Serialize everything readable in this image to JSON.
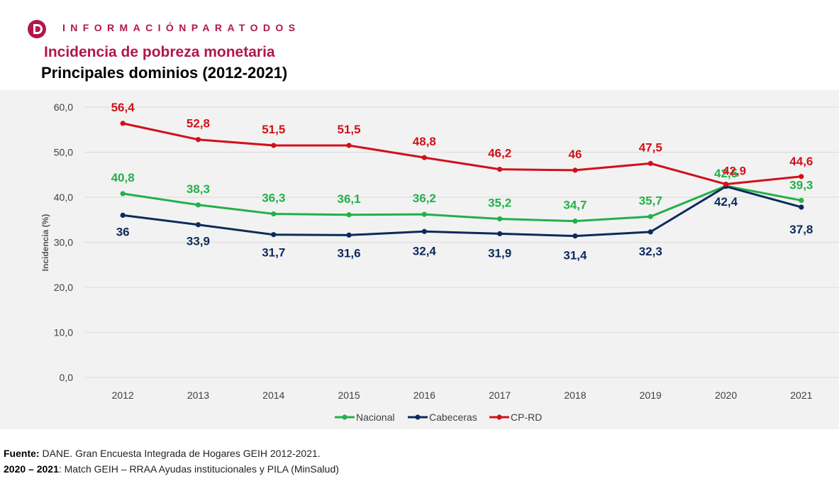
{
  "header": {
    "brand": "INFORMACIÓNPARATODOS",
    "title": "Incidencia de pobreza monetaria",
    "subtitle": "Principales dominios (2012-2021)"
  },
  "footer": {
    "source_label": "Fuente:",
    "source_text": " DANE. Gran Encuesta Integrada de Hogares GEIH 2012-2021.",
    "note_label": "2020 – 2021",
    "note_text": ": Match GEIH – RRAA Ayudas institucionales y PILA (MinSalud)"
  },
  "colors": {
    "brand": "#b0174a",
    "nacional": "#22b04b",
    "cabeceras": "#0d2a5c",
    "cprd": "#d0111b",
    "grid": "#d9d9d9",
    "background": "#f2f2f2"
  },
  "chart_data": {
    "type": "line",
    "ylabel": "Incidencia (%)",
    "xlabel": "",
    "ylim": [
      0,
      60
    ],
    "yticks": [
      "0,0",
      "10,0",
      "20,0",
      "30,0",
      "40,0",
      "50,0",
      "60,0"
    ],
    "grid": true,
    "legend_position": "bottom",
    "categories": [
      "2012",
      "2013",
      "2014",
      "2015",
      "2016",
      "2017",
      "2018",
      "2019",
      "2020",
      "2021"
    ],
    "series": [
      {
        "name": "Nacional",
        "values": [
          40.8,
          38.3,
          36.3,
          36.1,
          36.2,
          35.2,
          34.7,
          35.7,
          42.5,
          39.3
        ],
        "labels": [
          "40,8",
          "38,3",
          "36,3",
          "36,1",
          "36,2",
          "35,2",
          "34,7",
          "35,7",
          "42,5",
          "39,3"
        ]
      },
      {
        "name": "Cabeceras",
        "values": [
          36,
          33.9,
          31.7,
          31.6,
          32.4,
          31.9,
          31.4,
          32.3,
          42.4,
          37.8
        ],
        "labels": [
          "36",
          "33,9",
          "31,7",
          "31,6",
          "32,4",
          "31,9",
          "31,4",
          "32,3",
          "42,4",
          "37,8"
        ]
      },
      {
        "name": "CP-RD",
        "values": [
          56.4,
          52.8,
          51.5,
          51.5,
          48.8,
          46.2,
          46,
          47.5,
          42.9,
          44.6
        ],
        "labels": [
          "56,4",
          "52,8",
          "51,5",
          "51,5",
          "48,8",
          "46,2",
          "46",
          "47,5",
          "42,9",
          "44,6"
        ]
      }
    ]
  }
}
